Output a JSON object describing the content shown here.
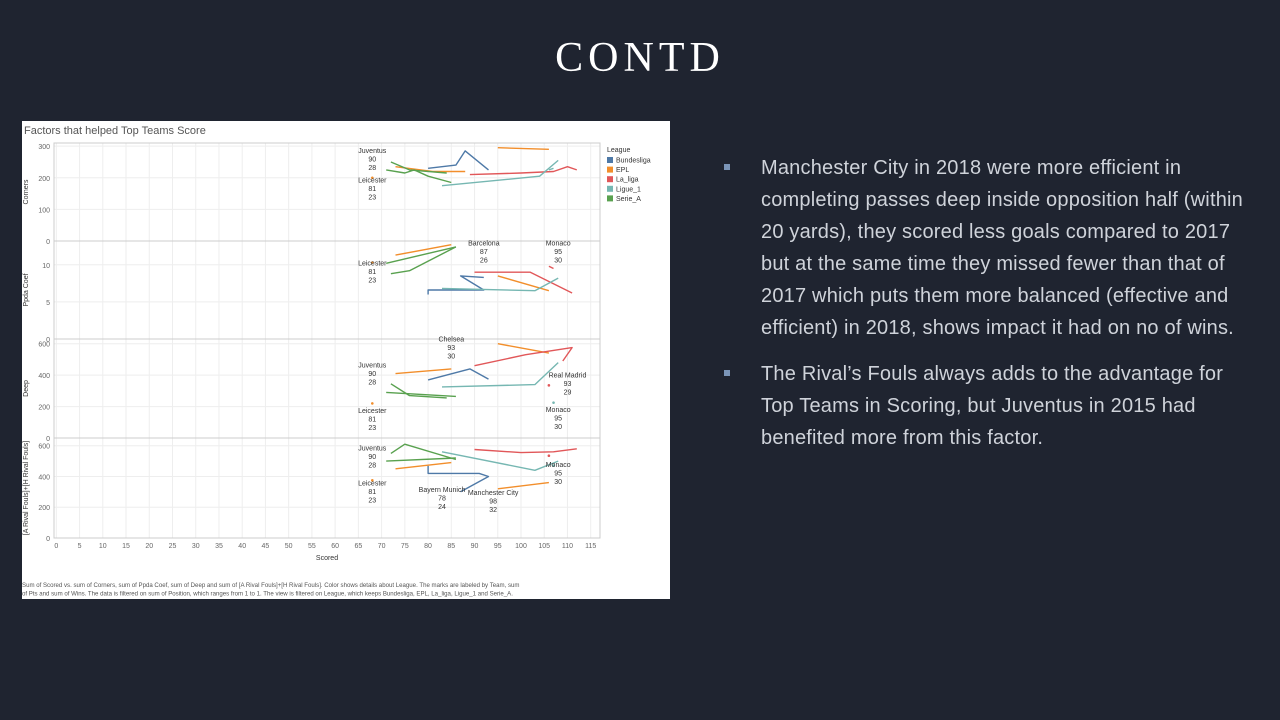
{
  "slide": {
    "title": "CONTD"
  },
  "bullets": [
    "Manchester City in 2018 were more efficient in completing passes deep inside opposition half (within 20 yards), they scored less goals compared to 2017 but at the same time they missed fewer than that of 2017 which puts them more balanced (effective and efficient) in 2018, shows impact it had on no of wins.",
    "The Rival’s Fouls always adds to the advantage for Top Teams in Scoring, but Juventus in 2015 had benefited more from this factor."
  ],
  "chart_data": {
    "type": "line",
    "title": "Factors that helped Top Teams Score",
    "xlabel": "Scored",
    "x_ticks": [
      0,
      5,
      10,
      15,
      20,
      25,
      30,
      35,
      40,
      45,
      50,
      55,
      60,
      65,
      70,
      75,
      80,
      85,
      90,
      95,
      100,
      105,
      110,
      115
    ],
    "xlim": [
      -0.5,
      117
    ],
    "legend": {
      "title": "League",
      "position": "top-right",
      "entries": [
        {
          "name": "Bundesliga",
          "color": "#4e79a7"
        },
        {
          "name": "EPL",
          "color": "#f28e2b"
        },
        {
          "name": "La_liga",
          "color": "#e15759"
        },
        {
          "name": "Ligue_1",
          "color": "#76b7b2"
        },
        {
          "name": "Serie_A",
          "color": "#59a14f"
        }
      ]
    },
    "footer": [
      "Sum of Scored vs. sum of Corners, sum of Ppda Coef, sum of Deep and sum of [A Rival Fouls]+[H Rival Fouls].  Color shows details about League.  The marks are labeled by Team, sum",
      "of Pts and sum of Wins. The data is filtered on sum of Position, which ranges from 1 to 1. The view is filtered on League, which keeps Bundesliga, EPL, La_liga, Ligue_1 and Serie_A."
    ],
    "panels": [
      {
        "ylabel": "Corners",
        "ylim": [
          0,
          310
        ],
        "yticks": [
          0,
          100,
          200,
          300
        ],
        "series": [
          {
            "league": "Bundesliga",
            "points": [
              [
                80,
                230
              ],
              [
                86,
                240
              ],
              [
                88,
                285
              ],
              [
                93,
                225
              ]
            ]
          },
          {
            "league": "EPL",
            "points": [
              [
                68,
                200
              ]
            ]
          },
          {
            "league": "EPL",
            "points": [
              [
                73,
                235
              ],
              [
                81,
                220
              ],
              [
                88,
                220
              ]
            ]
          },
          {
            "league": "EPL",
            "points": [
              [
                95,
                295
              ],
              [
                106,
                290
              ]
            ]
          },
          {
            "league": "La_liga",
            "points": [
              [
                89,
                210
              ],
              [
                100,
                215
              ],
              [
                107,
                220
              ],
              [
                110,
                235
              ],
              [
                112,
                225
              ]
            ]
          },
          {
            "league": "Ligue_1",
            "points": [
              [
                83,
                175
              ],
              [
                104,
                205
              ],
              [
                108,
                255
              ]
            ]
          },
          {
            "league": "Ligue_1",
            "points": [
              [
                106,
                225
              ],
              [
                107,
                230
              ]
            ]
          },
          {
            "league": "Serie_A",
            "points": [
              [
                71,
                225
              ],
              [
                75,
                215
              ],
              [
                77,
                225
              ],
              [
                80,
                205
              ],
              [
                85,
                185
              ]
            ]
          },
          {
            "league": "Serie_A",
            "points": [
              [
                72,
                250
              ],
              [
                76,
                225
              ],
              [
                84,
                215
              ]
            ]
          }
        ],
        "labels": [
          {
            "lines": [
              "Juventus",
              "90",
              "28"
            ],
            "x": 68,
            "y": 278
          },
          {
            "lines": [
              "Leicester",
              "81",
              "23"
            ],
            "x": 68,
            "y": 185
          }
        ]
      },
      {
        "ylabel": "Ppda Coef",
        "ylim": [
          0,
          13.2
        ],
        "yticks": [
          0,
          5,
          10
        ],
        "series": [
          {
            "league": "Bundesliga",
            "points": [
              [
                80,
                6.0
              ],
              [
                80,
                6.6
              ],
              [
                92,
                6.6
              ],
              [
                87,
                8.5
              ],
              [
                92,
                8.3
              ]
            ]
          },
          {
            "league": "EPL",
            "points": [
              [
                68,
                10.3
              ]
            ]
          },
          {
            "league": "EPL",
            "points": [
              [
                73,
                11.3
              ],
              [
                85,
                12.7
              ]
            ]
          },
          {
            "league": "EPL",
            "points": [
              [
                95,
                8.5
              ],
              [
                106,
                6.5
              ]
            ]
          },
          {
            "league": "La_liga",
            "points": [
              [
                90,
                9.0
              ],
              [
                102,
                9.0
              ],
              [
                111,
                6.2
              ]
            ]
          },
          {
            "league": "La_liga",
            "points": [
              [
                106,
                9.8
              ],
              [
                107,
                9.5
              ]
            ]
          },
          {
            "league": "Ligue_1",
            "points": [
              [
                83,
                6.8
              ],
              [
                103,
                6.5
              ],
              [
                108,
                8.2
              ]
            ]
          },
          {
            "league": "Serie_A",
            "points": [
              [
                71,
                10.2
              ],
              [
                86,
                12.4
              ]
            ]
          },
          {
            "league": "Serie_A",
            "points": [
              [
                72,
                8.8
              ],
              [
                76,
                9.2
              ],
              [
                86,
                12.4
              ]
            ]
          }
        ],
        "labels": [
          {
            "lines": [
              "Barcelona",
              "87",
              "26"
            ],
            "x": 92,
            "y": 12.6
          },
          {
            "lines": [
              "Monaco",
              "95",
              "30"
            ],
            "x": 108,
            "y": 12.6
          },
          {
            "lines": [
              "Leicester",
              "81",
              "23"
            ],
            "x": 68,
            "y": 9.9
          }
        ]
      },
      {
        "ylabel": "Deep",
        "ylim": [
          0,
          630
        ],
        "yticks": [
          0,
          200,
          400,
          600
        ],
        "series": [
          {
            "league": "Bundesliga",
            "points": [
              [
                80,
                370
              ],
              [
                89,
                440
              ],
              [
                93,
                375
              ]
            ]
          },
          {
            "league": "EPL",
            "points": [
              [
                68,
                220
              ]
            ]
          },
          {
            "league": "EPL",
            "points": [
              [
                73,
                410
              ],
              [
                85,
                440
              ]
            ]
          },
          {
            "league": "EPL",
            "points": [
              [
                95,
                600
              ],
              [
                106,
                540
              ]
            ]
          },
          {
            "league": "La_liga",
            "points": [
              [
                90,
                460
              ],
              [
                101,
                530
              ],
              [
                111,
                575
              ],
              [
                109,
                490
              ]
            ]
          },
          {
            "league": "La_liga",
            "points": [
              [
                106,
                335
              ]
            ]
          },
          {
            "league": "Ligue_1",
            "points": [
              [
                83,
                325
              ],
              [
                103,
                340
              ],
              [
                108,
                480
              ]
            ]
          },
          {
            "league": "Ligue_1",
            "points": [
              [
                107,
                225
              ]
            ]
          },
          {
            "league": "Serie_A",
            "points": [
              [
                72,
                345
              ],
              [
                76,
                270
              ],
              [
                84,
                255
              ]
            ]
          },
          {
            "league": "Serie_A",
            "points": [
              [
                71,
                290
              ],
              [
                86,
                265
              ]
            ]
          }
        ],
        "labels": [
          {
            "lines": [
              "Chelsea",
              "93",
              "30"
            ],
            "x": 85,
            "y": 615
          },
          {
            "lines": [
              "Juventus",
              "90",
              "28"
            ],
            "x": 68,
            "y": 450
          },
          {
            "lines": [
              "Real Madrid",
              "93",
              "29"
            ],
            "x": 110,
            "y": 385
          },
          {
            "lines": [
              "Leicester",
              "81",
              "23"
            ],
            "x": 68,
            "y": 160
          },
          {
            "lines": [
              "Monaco",
              "95",
              "30"
            ],
            "x": 108,
            "y": 165
          }
        ]
      },
      {
        "ylabel": "[A Rival Fouls]+[H Rival Fouls]",
        "ylim": [
          0,
          650
        ],
        "yticks": [
          0,
          200,
          400,
          600
        ],
        "series": [
          {
            "league": "Bundesliga",
            "points": [
              [
                80,
                470
              ],
              [
                80,
                420
              ],
              [
                91,
                420
              ],
              [
                93,
                400
              ],
              [
                87,
                300
              ]
            ]
          },
          {
            "league": "EPL",
            "points": [
              [
                68,
                375
              ]
            ]
          },
          {
            "league": "EPL",
            "points": [
              [
                73,
                450
              ],
              [
                85,
                490
              ]
            ]
          },
          {
            "league": "EPL",
            "points": [
              [
                95,
                320
              ],
              [
                106,
                360
              ]
            ]
          },
          {
            "league": "La_liga",
            "points": [
              [
                90,
                575
              ],
              [
                100,
                555
              ],
              [
                107,
                560
              ],
              [
                112,
                580
              ]
            ]
          },
          {
            "league": "La_liga",
            "points": [
              [
                106,
                535
              ]
            ]
          },
          {
            "league": "Ligue_1",
            "points": [
              [
                83,
                560
              ],
              [
                103,
                440
              ],
              [
                108,
                500
              ]
            ]
          },
          {
            "league": "Ligue_1",
            "points": [
              [
                107,
                470
              ]
            ]
          },
          {
            "league": "Serie_A",
            "points": [
              [
                71,
                500
              ],
              [
                86,
                520
              ]
            ]
          },
          {
            "league": "Serie_A",
            "points": [
              [
                72,
                550
              ],
              [
                75,
                610
              ],
              [
                86,
                510
              ]
            ]
          }
        ],
        "labels": [
          {
            "lines": [
              "Juventus",
              "90",
              "28"
            ],
            "x": 68,
            "y": 570
          },
          {
            "lines": [
              "Monaco",
              "95",
              "30"
            ],
            "x": 108,
            "y": 460
          },
          {
            "lines": [
              "Leicester",
              "81",
              "23"
            ],
            "x": 68,
            "y": 340
          },
          {
            "lines": [
              "Bayern Munich",
              "78",
              "24"
            ],
            "x": 83,
            "y": 300
          },
          {
            "lines": [
              "Manchester City",
              "98",
              "32"
            ],
            "x": 94,
            "y": 280
          }
        ]
      }
    ]
  }
}
